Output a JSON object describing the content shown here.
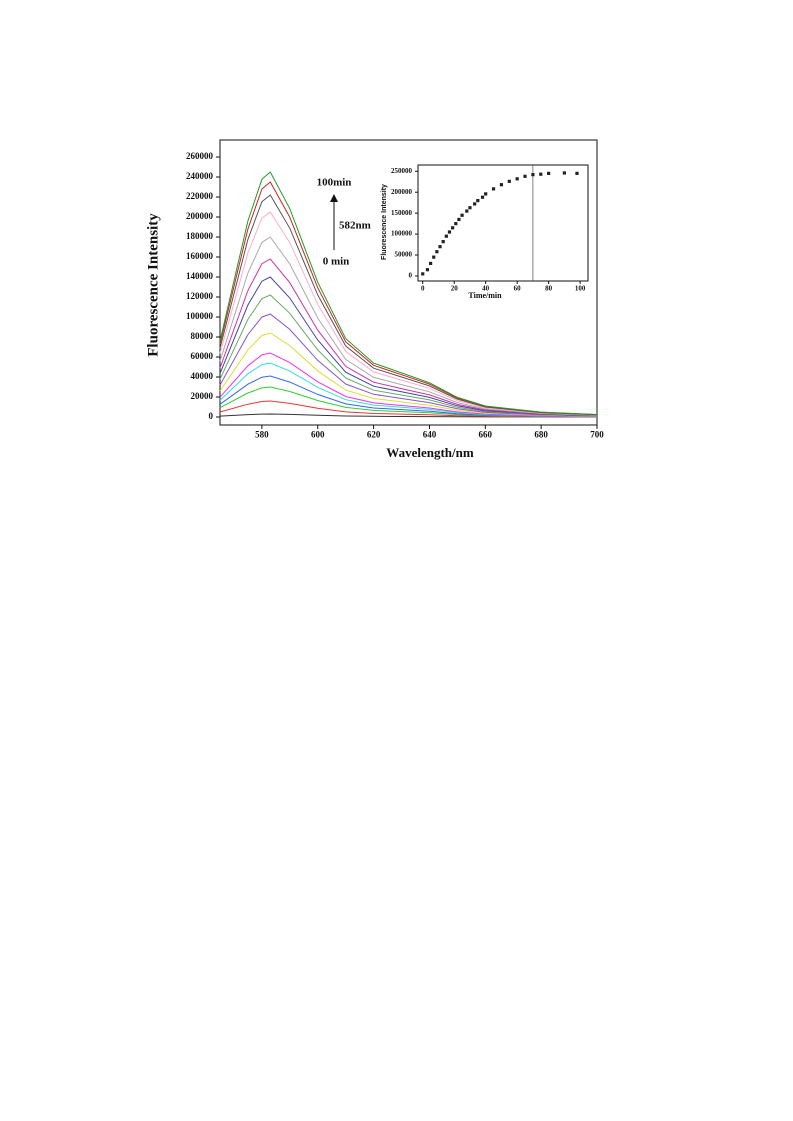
{
  "chart_data": [
    {
      "type": "line",
      "xlabel": "Wavelength/nm",
      "ylabel": "Fluorescence Intensity",
      "annotations": [
        "100min",
        "582nm",
        "0 min"
      ],
      "x": [
        565,
        575,
        580,
        583,
        590,
        600,
        610,
        620,
        630,
        640,
        650,
        660,
        680,
        700
      ],
      "xlim": [
        565,
        700
      ],
      "xticks": [
        580,
        600,
        620,
        640,
        660,
        680,
        700
      ],
      "ylim": [
        -8000,
        277000
      ],
      "yticks": [
        0,
        20000,
        40000,
        60000,
        80000,
        100000,
        120000,
        140000,
        160000,
        180000,
        200000,
        220000,
        240000,
        260000
      ],
      "series": [
        {
          "color": "#333333",
          "values": [
            900,
            2400,
            2900,
            3000,
            2600,
            1700,
            1000,
            700,
            500,
            400,
            200,
            100,
            100,
            0
          ]
        },
        {
          "color": "#ee3333",
          "values": [
            5000,
            12800,
            15500,
            16000,
            13600,
            8800,
            5100,
            3500,
            2900,
            2200,
            1300,
            700,
            300,
            200
          ]
        },
        {
          "color": "#33cc33",
          "values": [
            9300,
            24000,
            29100,
            30000,
            25500,
            16500,
            9600,
            6600,
            5400,
            4200,
            2400,
            1400,
            600,
            300
          ]
        },
        {
          "color": "#3366ee",
          "values": [
            12700,
            32800,
            39800,
            41000,
            34900,
            22600,
            13100,
            9000,
            7400,
            5700,
            3300,
            1800,
            800,
            400
          ]
        },
        {
          "color": "#33dddd",
          "values": [
            16700,
            43200,
            52400,
            54000,
            45900,
            29700,
            17300,
            11900,
            9700,
            7600,
            4300,
            2400,
            1100,
            500
          ]
        },
        {
          "color": "#ee33ee",
          "values": [
            19800,
            51200,
            62100,
            64000,
            54400,
            35200,
            20500,
            14100,
            11500,
            9000,
            5100,
            2900,
            1300,
            600
          ]
        },
        {
          "color": "#dddd33",
          "values": [
            26000,
            67200,
            81500,
            84000,
            71400,
            46200,
            26900,
            18500,
            15100,
            11800,
            6700,
            3800,
            1700,
            800
          ]
        },
        {
          "color": "#8855cc",
          "values": [
            31900,
            82400,
            99900,
            103000,
            87600,
            56700,
            33000,
            22700,
            18500,
            14400,
            8200,
            4600,
            2100,
            1000
          ]
        },
        {
          "color": "#66aa66",
          "values": [
            37800,
            97600,
            118300,
            122000,
            103700,
            67100,
            39000,
            26800,
            22000,
            17100,
            9800,
            5500,
            2400,
            1200
          ]
        },
        {
          "color": "#4444aa",
          "values": [
            43400,
            112000,
            135800,
            140000,
            119000,
            77000,
            44800,
            30800,
            25200,
            19600,
            11200,
            6300,
            2800,
            1400
          ]
        },
        {
          "color": "#cc33aa",
          "values": [
            49000,
            126400,
            153300,
            158000,
            134300,
            86900,
            50600,
            34800,
            28400,
            22100,
            12600,
            7100,
            3200,
            1600
          ]
        },
        {
          "color": "#aaaaaa",
          "values": [
            55800,
            144000,
            174600,
            180000,
            153000,
            99000,
            57600,
            39600,
            32400,
            25200,
            14400,
            8100,
            3600,
            1800
          ]
        },
        {
          "color": "#ffaacc",
          "values": [
            63600,
            164000,
            198900,
            205000,
            174300,
            112800,
            65600,
            45100,
            36900,
            28700,
            16400,
            9200,
            4100,
            2100
          ]
        },
        {
          "color": "#555555",
          "values": [
            68800,
            177600,
            215300,
            222000,
            188700,
            122100,
            71000,
            48800,
            40000,
            31100,
            17800,
            10000,
            4400,
            2200
          ]
        },
        {
          "color": "#cc2222",
          "values": [
            72900,
            188000,
            228000,
            235000,
            199800,
            129300,
            75200,
            51700,
            42300,
            32900,
            18800,
            10600,
            4700,
            2400
          ]
        },
        {
          "color": "#229922",
          "values": [
            76000,
            196000,
            237700,
            245000,
            208300,
            134800,
            78400,
            53900,
            44100,
            34300,
            19600,
            11000,
            4900,
            2500
          ]
        }
      ]
    },
    {
      "type": "scatter",
      "xlabel": "Time/min",
      "ylabel": "Fluorescence Intensity",
      "x": [
        0,
        3,
        5,
        7,
        9,
        11,
        13,
        15,
        17,
        19,
        21,
        23,
        25,
        28,
        30,
        33,
        35,
        38,
        40,
        45,
        50,
        55,
        60,
        65,
        70,
        75,
        80,
        90,
        98
      ],
      "values": [
        5000,
        15000,
        30000,
        45000,
        58000,
        70000,
        82000,
        95000,
        105000,
        115000,
        125000,
        135000,
        145000,
        155000,
        163000,
        172000,
        180000,
        188000,
        196000,
        208000,
        218000,
        226000,
        232000,
        238000,
        242000,
        243000,
        245000,
        246000,
        245000
      ],
      "color": "#222222",
      "xlim": [
        -3,
        105
      ],
      "xticks": [
        0,
        20,
        40,
        60,
        80,
        100
      ],
      "ylim": [
        -12000,
        265000
      ],
      "yticks": [
        0,
        50000,
        100000,
        150000,
        200000,
        250000
      ]
    }
  ]
}
